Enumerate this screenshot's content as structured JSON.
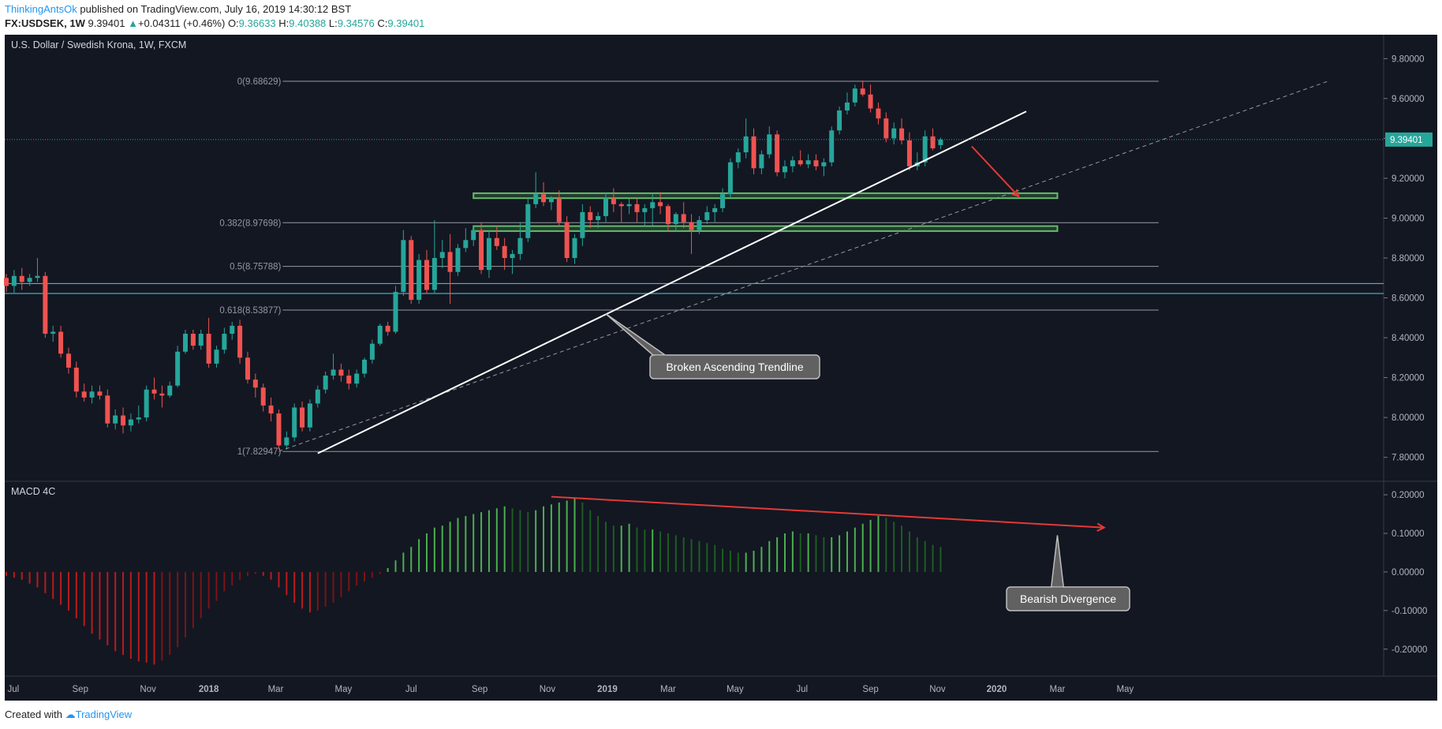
{
  "header": {
    "author": "ThinkingAntsOk",
    "published_text": " published on TradingView.com, July 16, 2019 14:30:12 BST",
    "symbol": "FX:USDSEK, 1W",
    "last": "9.39401",
    "change_arrow": "▲",
    "change": "+0.04311 (+0.46%)",
    "open_label": "O:",
    "open": "9.36633",
    "high_label": "H:",
    "high": "9.40388",
    "low_label": "L:",
    "low": "9.34576",
    "close_label": "C:",
    "close": "9.39401"
  },
  "footer": {
    "created_with": "Created with",
    "brand": "TradingView"
  },
  "chart_data": [
    {
      "type": "candlestick",
      "title": "U.S. Dollar / Swedish Krona, 1W, FXCM",
      "colors": {
        "background": "#131722",
        "up": "#26a69a",
        "down": "#ef5350",
        "price_line": "#26a69a"
      },
      "y_ticks": [
        "9.80000",
        "9.60000",
        "9.40000",
        "9.20000",
        "9.00000",
        "8.80000",
        "8.60000",
        "8.40000",
        "8.20000",
        "8.00000",
        "7.80000"
      ],
      "ylim": [
        7.68,
        9.92
      ],
      "x_ticks": [
        {
          "label": "Jul",
          "t": 0.9
        },
        {
          "label": "Sep",
          "t": 9.5
        },
        {
          "label": "Nov",
          "t": 18.2
        },
        {
          "label": "2018",
          "t": 26
        },
        {
          "label": "Mar",
          "t": 34.6
        },
        {
          "label": "May",
          "t": 43.3
        },
        {
          "label": "Jul",
          "t": 52
        },
        {
          "label": "Sep",
          "t": 60.8
        },
        {
          "label": "Nov",
          "t": 69.5
        },
        {
          "label": "2019",
          "t": 77.2
        },
        {
          "label": "Mar",
          "t": 85
        },
        {
          "label": "May",
          "t": 93.6
        },
        {
          "label": "Jul",
          "t": 102.2
        },
        {
          "label": "Sep",
          "t": 111
        },
        {
          "label": "Nov",
          "t": 119.6
        },
        {
          "label": "2020",
          "t": 127.2
        },
        {
          "label": "Mar",
          "t": 135
        },
        {
          "label": "May",
          "t": 143.7
        }
      ],
      "last_price": "9.39401",
      "candles": [
        [
          8.7,
          8.72,
          8.63,
          8.66
        ],
        [
          8.66,
          8.74,
          8.62,
          8.71
        ],
        [
          8.71,
          8.75,
          8.64,
          8.68
        ],
        [
          8.68,
          8.72,
          8.66,
          8.7
        ],
        [
          8.7,
          8.8,
          8.68,
          8.71
        ],
        [
          8.71,
          8.73,
          8.4,
          8.42
        ],
        [
          8.42,
          8.46,
          8.38,
          8.43
        ],
        [
          8.43,
          8.46,
          8.3,
          8.32
        ],
        [
          8.32,
          8.35,
          8.22,
          8.25
        ],
        [
          8.25,
          8.28,
          8.1,
          8.13
        ],
        [
          8.13,
          8.17,
          8.08,
          8.1
        ],
        [
          8.1,
          8.16,
          8.07,
          8.13
        ],
        [
          8.13,
          8.16,
          8.09,
          8.11
        ],
        [
          8.11,
          8.14,
          7.95,
          7.97
        ],
        [
          7.97,
          8.04,
          7.94,
          8.01
        ],
        [
          8.01,
          8.05,
          7.92,
          7.96
        ],
        [
          7.96,
          8.02,
          7.93,
          7.99
        ],
        [
          7.99,
          8.06,
          7.97,
          8.0
        ],
        [
          8.0,
          8.16,
          7.98,
          8.14
        ],
        [
          8.14,
          8.2,
          8.09,
          8.12
        ],
        [
          8.12,
          8.16,
          8.05,
          8.11
        ],
        [
          8.11,
          8.18,
          8.1,
          8.16
        ],
        [
          8.16,
          8.36,
          8.15,
          8.33
        ],
        [
          8.33,
          8.44,
          8.32,
          8.42
        ],
        [
          8.42,
          8.44,
          8.34,
          8.36
        ],
        [
          8.36,
          8.44,
          8.34,
          8.42
        ],
        [
          8.42,
          8.5,
          8.25,
          8.27
        ],
        [
          8.27,
          8.36,
          8.25,
          8.34
        ],
        [
          8.34,
          8.45,
          8.32,
          8.42
        ],
        [
          8.42,
          8.48,
          8.39,
          8.46
        ],
        [
          8.46,
          8.49,
          8.27,
          8.3
        ],
        [
          8.3,
          8.33,
          8.17,
          8.19
        ],
        [
          8.19,
          8.22,
          8.1,
          8.15
        ],
        [
          8.15,
          8.17,
          8.03,
          8.06
        ],
        [
          8.06,
          8.1,
          7.98,
          8.02
        ],
        [
          8.02,
          8.04,
          7.84,
          7.86
        ],
        [
          7.86,
          7.93,
          7.84,
          7.9
        ],
        [
          7.9,
          8.07,
          7.88,
          8.05
        ],
        [
          8.05,
          8.08,
          7.93,
          7.95
        ],
        [
          7.95,
          8.09,
          7.93,
          8.07
        ],
        [
          8.07,
          8.16,
          8.05,
          8.14
        ],
        [
          8.14,
          8.23,
          8.12,
          8.21
        ],
        [
          8.21,
          8.32,
          8.19,
          8.24
        ],
        [
          8.24,
          8.27,
          8.18,
          8.21
        ],
        [
          8.21,
          8.24,
          8.14,
          8.17
        ],
        [
          8.17,
          8.24,
          8.15,
          8.22
        ],
        [
          8.22,
          8.3,
          8.2,
          8.29
        ],
        [
          8.29,
          8.39,
          8.27,
          8.37
        ],
        [
          8.37,
          8.47,
          8.36,
          8.46
        ],
        [
          8.46,
          8.48,
          8.41,
          8.43
        ],
        [
          8.43,
          8.66,
          8.42,
          8.63
        ],
        [
          8.63,
          8.94,
          8.61,
          8.89
        ],
        [
          8.89,
          8.91,
          8.57,
          8.59
        ],
        [
          8.59,
          8.82,
          8.57,
          8.79
        ],
        [
          8.79,
          8.84,
          8.62,
          8.64
        ],
        [
          8.64,
          8.99,
          8.62,
          8.8
        ],
        [
          8.8,
          8.89,
          8.75,
          8.83
        ],
        [
          8.83,
          8.92,
          8.57,
          8.73
        ],
        [
          8.73,
          8.87,
          8.71,
          8.85
        ],
        [
          8.85,
          8.95,
          8.83,
          8.89
        ],
        [
          8.89,
          8.96,
          8.86,
          8.94
        ],
        [
          8.94,
          8.98,
          8.72,
          8.74
        ],
        [
          8.74,
          8.94,
          8.7,
          8.9
        ],
        [
          8.9,
          8.96,
          8.84,
          8.86
        ],
        [
          8.86,
          8.9,
          8.74,
          8.8
        ],
        [
          8.8,
          8.84,
          8.72,
          8.82
        ],
        [
          8.82,
          8.98,
          8.79,
          8.9
        ],
        [
          8.9,
          9.1,
          8.88,
          9.07
        ],
        [
          9.07,
          9.23,
          9.05,
          9.12
        ],
        [
          9.12,
          9.18,
          9.06,
          9.08
        ],
        [
          9.08,
          9.11,
          9.04,
          9.1
        ],
        [
          9.1,
          9.14,
          8.96,
          8.98
        ],
        [
          8.98,
          9.01,
          8.78,
          8.8
        ],
        [
          8.8,
          8.92,
          8.77,
          8.9
        ],
        [
          8.9,
          9.07,
          8.86,
          9.03
        ],
        [
          9.03,
          9.06,
          8.95,
          8.99
        ],
        [
          8.99,
          9.03,
          8.95,
          9.01
        ],
        [
          9.01,
          9.13,
          8.98,
          9.1
        ],
        [
          9.1,
          9.15,
          9.03,
          9.07
        ],
        [
          9.07,
          9.08,
          8.98,
          9.06
        ],
        [
          9.06,
          9.1,
          9.02,
          9.07
        ],
        [
          9.07,
          9.1,
          8.98,
          9.03
        ],
        [
          9.03,
          9.07,
          8.96,
          9.05
        ],
        [
          9.05,
          9.12,
          8.96,
          9.08
        ],
        [
          9.08,
          9.13,
          9.02,
          9.06
        ],
        [
          9.06,
          9.07,
          8.93,
          8.97
        ],
        [
          8.97,
          9.03,
          8.93,
          9.02
        ],
        [
          9.02,
          9.08,
          8.95,
          8.98
        ],
        [
          8.98,
          9.02,
          8.82,
          8.94
        ],
        [
          8.94,
          9.01,
          8.92,
          8.99
        ],
        [
          8.99,
          9.06,
          8.97,
          9.03
        ],
        [
          9.03,
          9.07,
          8.98,
          9.05
        ],
        [
          9.05,
          9.15,
          9.03,
          9.12
        ],
        [
          9.12,
          9.3,
          9.1,
          9.28
        ],
        [
          9.28,
          9.35,
          9.25,
          9.33
        ],
        [
          9.33,
          9.5,
          9.3,
          9.41
        ],
        [
          9.41,
          9.45,
          9.22,
          9.25
        ],
        [
          9.25,
          9.34,
          9.22,
          9.32
        ],
        [
          9.32,
          9.46,
          9.3,
          9.42
        ],
        [
          9.42,
          9.44,
          9.21,
          9.23
        ],
        [
          9.23,
          9.29,
          9.2,
          9.26
        ],
        [
          9.26,
          9.31,
          9.23,
          9.29
        ],
        [
          9.29,
          9.34,
          9.26,
          9.27
        ],
        [
          9.27,
          9.32,
          9.25,
          9.29
        ],
        [
          9.29,
          9.32,
          9.24,
          9.26
        ],
        [
          9.26,
          9.3,
          9.21,
          9.28
        ],
        [
          9.28,
          9.46,
          9.26,
          9.44
        ],
        [
          9.44,
          9.56,
          9.42,
          9.54
        ],
        [
          9.54,
          9.63,
          9.52,
          9.58
        ],
        [
          9.58,
          9.67,
          9.56,
          9.65
        ],
        [
          9.65,
          9.69,
          9.61,
          9.62
        ],
        [
          9.62,
          9.67,
          9.53,
          9.55
        ],
        [
          9.55,
          9.58,
          9.47,
          9.5
        ],
        [
          9.5,
          9.53,
          9.38,
          9.4
        ],
        [
          9.4,
          9.48,
          9.37,
          9.45
        ],
        [
          9.45,
          9.5,
          9.37,
          9.39
        ],
        [
          9.39,
          9.43,
          9.24,
          9.26
        ],
        [
          9.26,
          9.33,
          9.24,
          9.28
        ],
        [
          9.28,
          9.44,
          9.26,
          9.41
        ],
        [
          9.41,
          9.45,
          9.34,
          9.35
        ],
        [
          9.36633,
          9.40388,
          9.34576,
          9.39401
        ]
      ],
      "fib_levels": [
        {
          "label": "0(9.68629)",
          "value": 9.68629
        },
        {
          "label": "0.382(8.97698)",
          "value": 8.97698
        },
        {
          "label": "0.5(8.75788)",
          "value": 8.75788
        },
        {
          "label": "0.618(8.53877)",
          "value": 8.53877
        },
        {
          "label": "1(7.82947)",
          "value": 7.82947
        }
      ],
      "horizontal_lines": [
        8.672,
        8.622
      ],
      "support_zones": [
        {
          "t0": 60,
          "t1": 135,
          "y0": 9.1,
          "y1": 9.125
        },
        {
          "t0": 60,
          "t1": 135,
          "y0": 8.935,
          "y1": 8.96
        }
      ],
      "trendline": {
        "t0": 40,
        "v0": 7.82,
        "t1": 131,
        "v1": 9.535
      },
      "dashed_trendline": {
        "t0": 35,
        "v0": 7.83,
        "t1": 170,
        "v1": 9.69
      },
      "red_arrow": {
        "t0": 124,
        "v0": 9.36,
        "t1": 130,
        "v1": 9.11
      },
      "callout": {
        "text": "Broken Ascending Trendline",
        "point_t": 77,
        "point_v": 8.52
      }
    },
    {
      "type": "bar",
      "title": "MACD 4C",
      "y_ticks": [
        "0.20000",
        "0.10000",
        "0.00000",
        "-0.10000",
        "-0.20000"
      ],
      "ylim": [
        -0.27,
        0.235
      ],
      "values": [
        -0.01,
        -0.015,
        -0.02,
        -0.03,
        -0.04,
        -0.055,
        -0.07,
        -0.085,
        -0.1,
        -0.12,
        -0.14,
        -0.16,
        -0.175,
        -0.19,
        -0.205,
        -0.215,
        -0.225,
        -0.232,
        -0.235,
        -0.24,
        -0.23,
        -0.215,
        -0.195,
        -0.17,
        -0.145,
        -0.12,
        -0.095,
        -0.075,
        -0.05,
        -0.035,
        -0.02,
        -0.01,
        -0.005,
        -0.01,
        -0.02,
        -0.04,
        -0.06,
        -0.08,
        -0.095,
        -0.105,
        -0.1,
        -0.09,
        -0.08,
        -0.065,
        -0.05,
        -0.035,
        -0.025,
        -0.015,
        -0.005,
        0.01,
        0.03,
        0.05,
        0.065,
        0.085,
        0.1,
        0.115,
        0.12,
        0.13,
        0.14,
        0.145,
        0.15,
        0.155,
        0.16,
        0.165,
        0.17,
        0.165,
        0.16,
        0.155,
        0.16,
        0.17,
        0.175,
        0.18,
        0.185,
        0.19,
        0.18,
        0.16,
        0.145,
        0.13,
        0.12,
        0.12,
        0.125,
        0.115,
        0.11,
        0.11,
        0.105,
        0.1,
        0.095,
        0.09,
        0.085,
        0.08,
        0.075,
        0.07,
        0.06,
        0.055,
        0.05,
        0.05,
        0.055,
        0.065,
        0.08,
        0.09,
        0.1,
        0.105,
        0.1,
        0.1,
        0.095,
        0.09,
        0.09,
        0.095,
        0.105,
        0.115,
        0.125,
        0.135,
        0.145,
        0.14,
        0.13,
        0.12,
        0.105,
        0.09,
        0.08,
        0.07,
        0.065
      ],
      "colors": {
        "pos_rising": "#4caf50",
        "pos_falling": "#1b5e20",
        "neg_falling": "#b71c1c",
        "neg_rising": "#7b1414"
      },
      "divergence_line": {
        "t0": 70,
        "v0": 0.195,
        "t1": 141,
        "v1": 0.115
      },
      "callout": {
        "text": "Bearish Divergence",
        "point_t": 135,
        "point_v": 0.095
      }
    }
  ]
}
